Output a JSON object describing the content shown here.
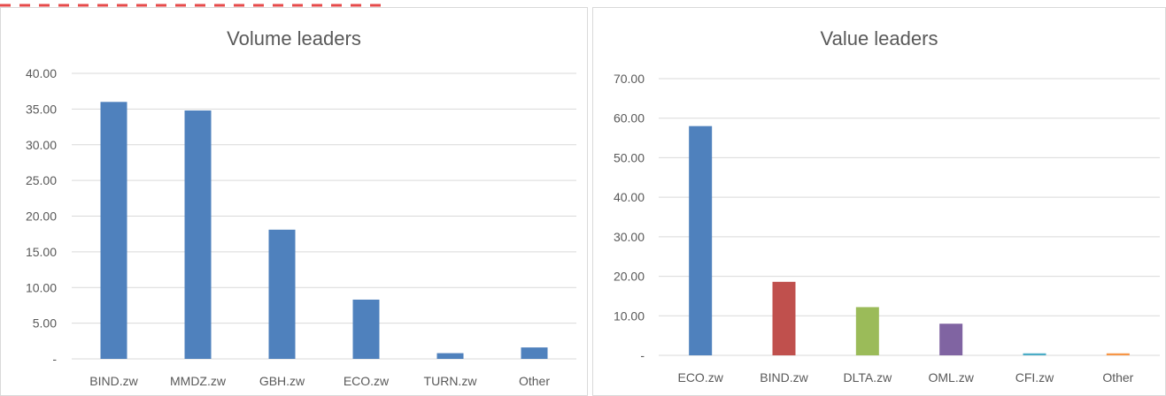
{
  "chart_data": [
    {
      "type": "bar",
      "title": "Volume leaders",
      "categories": [
        "BIND.zw",
        "MMDZ.zw",
        "GBH.zw",
        "ECO.zw",
        "TURN.zw",
        "Other"
      ],
      "values": [
        36.0,
        34.8,
        18.1,
        8.3,
        0.8,
        1.6
      ],
      "ylim": [
        0,
        40
      ],
      "yticks": [
        "-",
        "5.00",
        "10.00",
        "15.00",
        "20.00",
        "25.00",
        "30.00",
        "35.00",
        "40.00"
      ],
      "colors": [
        "#4f81bd",
        "#4f81bd",
        "#4f81bd",
        "#4f81bd",
        "#4f81bd",
        "#4f81bd"
      ],
      "grid": true
    },
    {
      "type": "bar",
      "title": "Value leaders",
      "categories": [
        "ECO.zw",
        "BIND.zw",
        "DLTA.zw",
        "OML.zw",
        "CFI.zw",
        "Other"
      ],
      "values": [
        58.0,
        18.6,
        12.2,
        8.0,
        0.5,
        0.5
      ],
      "ylim": [
        0,
        70
      ],
      "yticks": [
        "-",
        "10.00",
        "20.00",
        "30.00",
        "40.00",
        "50.00",
        "60.00",
        "70.00"
      ],
      "colors": [
        "#4f81bd",
        "#c0504d",
        "#9bbb59",
        "#8064a2",
        "#4bacc6",
        "#f79646"
      ],
      "grid": true
    }
  ]
}
